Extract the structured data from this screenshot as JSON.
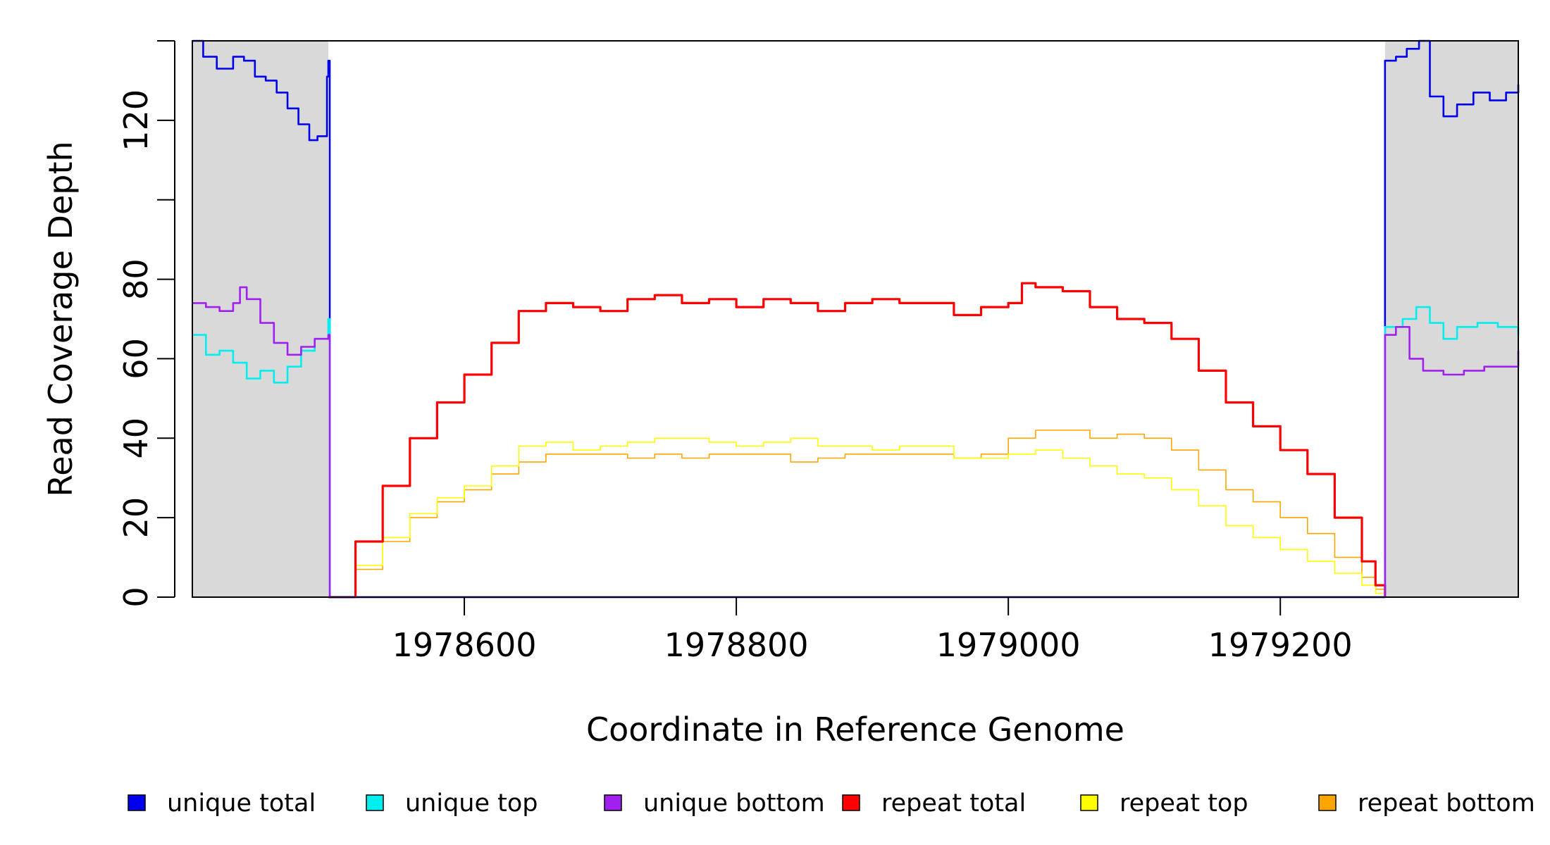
{
  "chart_data": {
    "type": "line",
    "title": "",
    "xlabel": "Coordinate in Reference Genome",
    "ylabel": "Read Coverage Depth",
    "xlim": [
      1978400,
      1979375
    ],
    "ylim": [
      0,
      140
    ],
    "x_ticks": [
      1978600,
      1978800,
      1979000,
      1979200
    ],
    "x_tick_labels": [
      "1978600",
      "1978800",
      "1979000",
      "1979200"
    ],
    "y_ticks": [
      0,
      20,
      40,
      60,
      80,
      100,
      120,
      140
    ],
    "y_tick_labels": [
      "0",
      "20",
      "40",
      "60",
      "80",
      "",
      "120",
      ""
    ],
    "grid": false,
    "shaded_regions": [
      {
        "x": [
          1978400,
          1978500
        ],
        "color": "#d9d9d9"
      },
      {
        "x": [
          1979277,
          1979375
        ],
        "color": "#d9d9d9"
      }
    ],
    "legend_position": "bottom",
    "series": [
      {
        "name": "unique total",
        "color": "#0000ee",
        "x": [
          1978400,
          1978408,
          1978418,
          1978430,
          1978438,
          1978446,
          1978454,
          1978462,
          1978470,
          1978478,
          1978486,
          1978492,
          1978499,
          1978500,
          1978501,
          1979276,
          1979277,
          1979285,
          1979293,
          1979302,
          1979310,
          1979320,
          1979330,
          1979342,
          1979354,
          1979366,
          1979375
        ],
        "y": [
          140,
          136,
          133,
          136,
          135,
          131,
          130,
          127,
          123,
          119,
          115,
          116,
          131,
          135,
          0,
          0,
          135,
          136,
          138,
          140,
          126,
          121,
          124,
          127,
          125,
          127,
          129
        ]
      },
      {
        "name": "unique top",
        "color": "#00eeee",
        "x": [
          1978400,
          1978410,
          1978420,
          1978430,
          1978440,
          1978450,
          1978460,
          1978470,
          1978480,
          1978490,
          1978500,
          1978501,
          1979276,
          1979277,
          1979290,
          1979300,
          1979310,
          1979320,
          1979330,
          1979345,
          1979360,
          1979375
        ],
        "y": [
          66,
          61,
          62,
          59,
          55,
          57,
          54,
          58,
          62,
          65,
          70,
          0,
          0,
          68,
          70,
          73,
          69,
          65,
          68,
          69,
          68,
          66
        ]
      },
      {
        "name": "unique bottom",
        "color": "#a020f0",
        "x": [
          1978400,
          1978410,
          1978420,
          1978430,
          1978435,
          1978440,
          1978450,
          1978460,
          1978470,
          1978480,
          1978490,
          1978500,
          1978501,
          1979276,
          1979277,
          1979285,
          1979295,
          1979305,
          1979320,
          1979335,
          1979350,
          1979365,
          1979375
        ],
        "y": [
          74,
          73,
          72,
          74,
          78,
          75,
          69,
          64,
          61,
          63,
          65,
          66,
          0,
          0,
          66,
          68,
          60,
          57,
          56,
          57,
          58,
          58,
          62
        ]
      },
      {
        "name": "repeat total",
        "color": "#ff0000",
        "x": [
          1978500,
          1978520,
          1978540,
          1978560,
          1978580,
          1978600,
          1978620,
          1978640,
          1978660,
          1978680,
          1978700,
          1978720,
          1978740,
          1978760,
          1978780,
          1978800,
          1978820,
          1978840,
          1978860,
          1978880,
          1978900,
          1978920,
          1978940,
          1978960,
          1978980,
          1979000,
          1979010,
          1979020,
          1979040,
          1979060,
          1979080,
          1979100,
          1979120,
          1979140,
          1979160,
          1979180,
          1979200,
          1979220,
          1979240,
          1979260,
          1979270,
          1979277
        ],
        "y": [
          0,
          14,
          28,
          40,
          49,
          56,
          64,
          72,
          74,
          73,
          72,
          75,
          76,
          74,
          75,
          73,
          75,
          74,
          72,
          74,
          75,
          74,
          74,
          71,
          73,
          74,
          79,
          78,
          77,
          73,
          70,
          69,
          65,
          57,
          49,
          43,
          37,
          31,
          20,
          9,
          3,
          0
        ],
        "width": 3.2
      },
      {
        "name": "repeat top",
        "color": "#ffff00",
        "x": [
          1978500,
          1978520,
          1978540,
          1978560,
          1978580,
          1978600,
          1978620,
          1978640,
          1978660,
          1978680,
          1978700,
          1978720,
          1978740,
          1978760,
          1978780,
          1978800,
          1978820,
          1978840,
          1978860,
          1978880,
          1978900,
          1978920,
          1978940,
          1978960,
          1978980,
          1979000,
          1979020,
          1979040,
          1979060,
          1979080,
          1979100,
          1979120,
          1979140,
          1979160,
          1979180,
          1979200,
          1979220,
          1979240,
          1979260,
          1979270,
          1979277
        ],
        "y": [
          0,
          8,
          15,
          21,
          25,
          28,
          33,
          38,
          39,
          37,
          38,
          39,
          40,
          40,
          39,
          38,
          39,
          40,
          38,
          38,
          37,
          38,
          38,
          35,
          35,
          36,
          37,
          35,
          33,
          31,
          30,
          27,
          23,
          18,
          15,
          12,
          9,
          6,
          3,
          1,
          0
        ],
        "width": 1.6
      },
      {
        "name": "repeat bottom",
        "color": "#ffa500",
        "x": [
          1978500,
          1978520,
          1978540,
          1978560,
          1978580,
          1978600,
          1978620,
          1978640,
          1978660,
          1978680,
          1978700,
          1978720,
          1978740,
          1978760,
          1978780,
          1978800,
          1978820,
          1978840,
          1978860,
          1978880,
          1978900,
          1978920,
          1978940,
          1978960,
          1978980,
          1979000,
          1979020,
          1979040,
          1979060,
          1979080,
          1979100,
          1979120,
          1979140,
          1979160,
          1979180,
          1979200,
          1979220,
          1979240,
          1979260,
          1979270,
          1979277
        ],
        "y": [
          0,
          7,
          14,
          20,
          24,
          27,
          31,
          34,
          36,
          36,
          36,
          35,
          36,
          35,
          36,
          36,
          36,
          34,
          35,
          36,
          36,
          36,
          36,
          35,
          36,
          40,
          42,
          42,
          40,
          41,
          40,
          37,
          32,
          27,
          24,
          20,
          16,
          10,
          5,
          2,
          0
        ],
        "width": 1.6
      }
    ]
  }
}
